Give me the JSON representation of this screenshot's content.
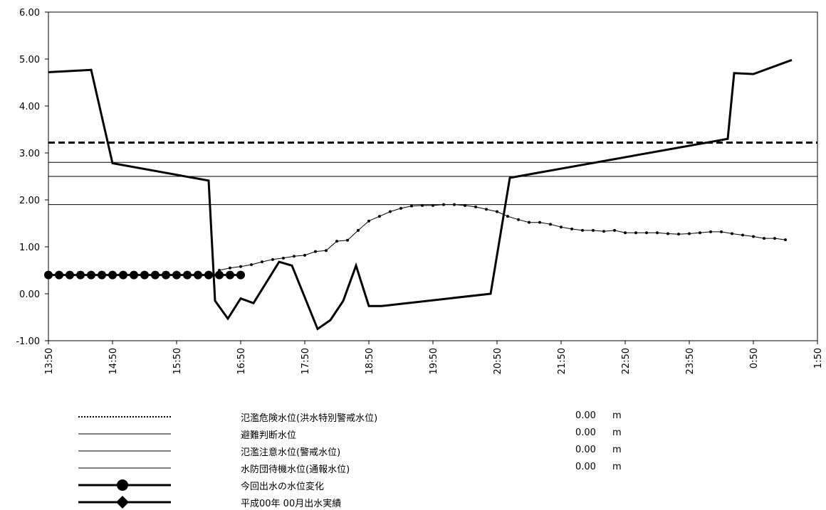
{
  "chart_data": {
    "type": "line",
    "ylim": [
      -1.0,
      6.0
    ],
    "y_ticks": [
      "6.00",
      "5.00",
      "4.00",
      "3.00",
      "2.00",
      "1.00",
      "0.00",
      "-1.00"
    ],
    "x_ticks": [
      "13:50",
      "14:50",
      "15:50",
      "16:50",
      "17:50",
      "18:50",
      "19:50",
      "20:50",
      "21:50",
      "22:50",
      "23:50",
      "0:50",
      "1:50"
    ],
    "x_range_hours": [
      0,
      12
    ],
    "grid": false,
    "legend_placement": "bottom",
    "series": [
      {
        "name": "氾濫危険水位(洪水特別警戒水位)",
        "value_text": "0.00",
        "unit": "m",
        "style": "dashed-thick",
        "constant": 3.22
      },
      {
        "name": "避難判断水位",
        "value_text": "0.00",
        "unit": "m",
        "style": "thin",
        "constant": 2.8
      },
      {
        "name": "氾濫注意水位(警戒水位)",
        "value_text": "0.00",
        "unit": "m",
        "style": "thin",
        "constant": 2.5
      },
      {
        "name": "水防団待機水位(通報水位)",
        "value_text": "0.00",
        "unit": "m",
        "style": "thin",
        "constant": 1.9
      },
      {
        "name": "今回出水の水位変化",
        "style": "thick-circle",
        "x": [
          0,
          0.1667,
          0.3333,
          0.5,
          0.6667,
          0.8333,
          1.0,
          1.1667,
          1.3333,
          1.5,
          1.6667,
          1.8333,
          2.0,
          2.1667,
          2.3333,
          2.5,
          2.6667,
          2.8333,
          3.0
        ],
        "y": [
          0.4,
          0.4,
          0.4,
          0.4,
          0.4,
          0.4,
          0.4,
          0.4,
          0.4,
          0.4,
          0.4,
          0.4,
          0.4,
          0.4,
          0.4,
          0.4,
          0.4,
          0.4,
          0.4
        ]
      },
      {
        "name": "平成00年 00月出水実績",
        "style": "thick-diamond",
        "x": [
          0,
          0.6667,
          1.0,
          2.5,
          2.6,
          2.8,
          3.0,
          3.2,
          3.6,
          3.8,
          4.2,
          4.4,
          4.6,
          4.8,
          5.0,
          5.2,
          6.9,
          7.2,
          10.6,
          10.7,
          11.0,
          11.6
        ],
        "y": [
          4.72,
          4.77,
          2.78,
          2.41,
          -0.15,
          -0.53,
          -0.1,
          -0.2,
          0.68,
          0.6,
          -0.75,
          -0.56,
          -0.15,
          0.6,
          -0.26,
          -0.26,
          0.0,
          2.47,
          3.3,
          4.7,
          4.68,
          4.98
        ]
      },
      {
        "name": "observed-dotted-line",
        "style": "thin-dots",
        "x": [
          2.6667,
          2.8333,
          3.0,
          3.1667,
          3.3333,
          3.5,
          3.6667,
          3.8333,
          4.0,
          4.1667,
          4.3333,
          4.5,
          4.6667,
          4.8333,
          5.0,
          5.1667,
          5.3333,
          5.5,
          5.6667,
          5.8333,
          6.0,
          6.1667,
          6.3333,
          6.5,
          6.6667,
          6.8333,
          7.0,
          7.1667,
          7.3333,
          7.5,
          7.6667,
          7.8333,
          8.0,
          8.1667,
          8.3333,
          8.5,
          8.6667,
          8.8333,
          9.0,
          9.1667,
          9.3333,
          9.5,
          9.6667,
          9.8333,
          10.0,
          10.1667,
          10.3333,
          10.5,
          10.6667,
          10.8333,
          11.0,
          11.1667,
          11.3333,
          11.5
        ],
        "y": [
          0.5,
          0.55,
          0.58,
          0.62,
          0.68,
          0.73,
          0.76,
          0.8,
          0.82,
          0.9,
          0.92,
          1.12,
          1.14,
          1.35,
          1.55,
          1.65,
          1.75,
          1.82,
          1.87,
          1.88,
          1.88,
          1.9,
          1.9,
          1.88,
          1.85,
          1.8,
          1.75,
          1.65,
          1.58,
          1.52,
          1.52,
          1.48,
          1.42,
          1.38,
          1.35,
          1.35,
          1.33,
          1.35,
          1.3,
          1.3,
          1.3,
          1.3,
          1.28,
          1.27,
          1.28,
          1.3,
          1.32,
          1.32,
          1.28,
          1.25,
          1.22,
          1.18,
          1.18,
          1.15
        ]
      }
    ]
  }
}
